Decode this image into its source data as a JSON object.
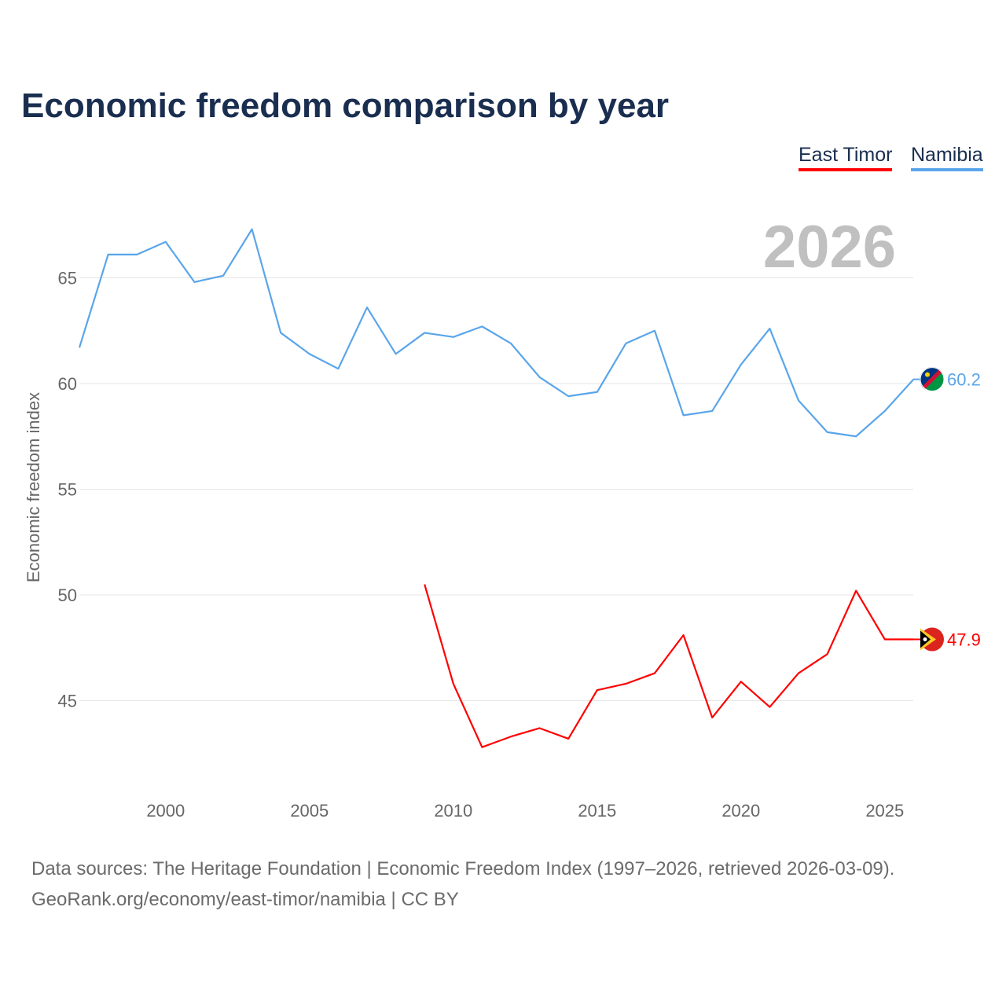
{
  "chart_data": {
    "type": "line",
    "title": "Economic freedom comparison by year",
    "ylabel": "Economic freedom index",
    "xlabel": "",
    "year_watermark": "2026",
    "ylim": [
      40.5,
      68.5
    ],
    "xlim": [
      1997,
      2026
    ],
    "yticks": [
      45,
      50,
      55,
      60,
      65
    ],
    "xticks": [
      2000,
      2005,
      2010,
      2015,
      2020,
      2025
    ],
    "grid": true,
    "legend_position": "top-right",
    "series": [
      {
        "name": "East Timor",
        "color": "#ff0000",
        "end_label": "47.9",
        "x": [
          2009,
          2010,
          2011,
          2012,
          2013,
          2014,
          2015,
          2016,
          2017,
          2018,
          2019,
          2020,
          2021,
          2022,
          2023,
          2024,
          2025,
          2026
        ],
        "values": [
          50.5,
          45.8,
          42.8,
          43.3,
          43.7,
          43.2,
          45.5,
          45.8,
          46.3,
          48.1,
          44.2,
          45.9,
          44.7,
          46.3,
          47.2,
          50.2,
          47.9,
          47.9
        ]
      },
      {
        "name": "Namibia",
        "color": "#5aa5ea",
        "end_label": "60.2",
        "x": [
          1997,
          1998,
          1999,
          2000,
          2001,
          2002,
          2003,
          2004,
          2005,
          2006,
          2007,
          2008,
          2009,
          2010,
          2011,
          2012,
          2013,
          2014,
          2015,
          2016,
          2017,
          2018,
          2019,
          2020,
          2021,
          2022,
          2023,
          2024,
          2025,
          2026
        ],
        "values": [
          61.7,
          66.1,
          66.1,
          66.7,
          64.8,
          65.1,
          67.3,
          62.4,
          61.4,
          60.7,
          63.6,
          61.4,
          62.4,
          62.2,
          62.7,
          61.9,
          60.3,
          59.4,
          59.6,
          61.9,
          62.5,
          58.5,
          58.7,
          60.9,
          62.6,
          59.2,
          57.7,
          57.5,
          58.7,
          60.2
        ]
      }
    ]
  },
  "footer": {
    "line1": "Data sources: The Heritage Foundation | Economic Freedom Index (1997–2026, retrieved 2026-03-09).",
    "line2": "GeoRank.org/economy/east-timor/namibia | CC BY"
  }
}
